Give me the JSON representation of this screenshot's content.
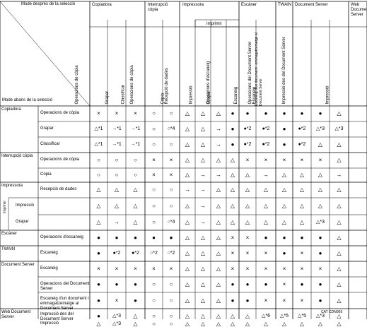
{
  "corner": {
    "top_label": "Mode després de la selecció",
    "bottom_label": "Mode abans de la selecció"
  },
  "groups": [
    {
      "label": "Copiadora"
    },
    {
      "label": "Interrupció còpia"
    },
    {
      "label": "Impressora",
      "sub": "Imprimir"
    },
    {
      "label": "Escàner"
    },
    {
      "label": "TWAIN"
    },
    {
      "label": "Document Server"
    },
    {
      "label": "Web Document Server"
    }
  ],
  "columns": [
    {
      "label": "Operacions de còpia"
    },
    {
      "label": "Grapar"
    },
    {
      "label": "Classificar"
    },
    {
      "label": "Operacions de còpia"
    },
    {
      "label": "Còpia"
    },
    {
      "label": "Recepció de dades"
    },
    {
      "label": "Impressió"
    },
    {
      "label": "Grapar"
    },
    {
      "label": "Operacions d'escaneig"
    },
    {
      "label": "Escaneig"
    },
    {
      "label": "Escaneig"
    },
    {
      "label": "Operacions del Document Server"
    },
    {
      "label": "Escaneig d'un document i emmagatzematge al Document Server"
    },
    {
      "label": "Impressió des del Document Server"
    },
    {
      "label": "Impressió"
    }
  ],
  "row_groups": [
    {
      "label": "Copiadora"
    },
    {
      "label": "Interrupció còpia"
    },
    {
      "label": "Impressora",
      "sub": "Imprimir"
    },
    {
      "label": "Escàner"
    },
    {
      "label": "TWAIN"
    },
    {
      "label": "Document Server"
    },
    {
      "label": "Web Document Server"
    }
  ],
  "rows": [
    {
      "label": "Operacions de còpia",
      "cells": [
        "×",
        "×",
        "×",
        "○",
        "○",
        "△",
        "△",
        "△",
        "●",
        "●",
        "●",
        "●",
        "●",
        "●",
        "△"
      ]
    },
    {
      "label": "Grapar",
      "cells": [
        "△*1",
        "→*1",
        "→*1",
        "○",
        "○*4",
        "△",
        "△",
        "→",
        "●",
        "●*2",
        "●*2",
        "●",
        "●*2",
        "△*3",
        "△*3"
      ]
    },
    {
      "label": "Classificar",
      "cells": [
        "△*1",
        "→*1",
        "→*1",
        "○",
        "○",
        "△",
        "△",
        "→",
        "●",
        "●*2",
        "●*2",
        "●",
        "●*2",
        "△",
        "△"
      ]
    },
    {
      "label": "Operacions de còpia",
      "cells": [
        "○",
        "○",
        "○",
        "×",
        "×",
        "△",
        "△",
        "△",
        "△",
        "×",
        "×",
        "×",
        "×",
        "×",
        "△"
      ]
    },
    {
      "label": "Còpia",
      "cells": [
        "○",
        "○",
        "○",
        "×",
        "×",
        "△",
        "→",
        "→",
        "△",
        "△",
        "→",
        "△",
        "△",
        "△",
        "→"
      ]
    },
    {
      "label": "Recepció de dades",
      "cells": [
        "△",
        "△",
        "△",
        "○",
        "○",
        "→",
        "→",
        "△",
        "△",
        "△",
        "△",
        "△",
        "△",
        "△",
        "△"
      ]
    },
    {
      "label": "Impressió",
      "cells": [
        "△",
        "△",
        "△",
        "○",
        "○",
        "△",
        "→",
        "△",
        "△",
        "△",
        "△",
        "△",
        "△",
        "△",
        "△"
      ]
    },
    {
      "label": "Grapar",
      "cells": [
        "△",
        "→",
        "△",
        "○",
        "○*4",
        "△",
        "→",
        "△",
        "△",
        "△",
        "△",
        "△",
        "△",
        "△*3",
        "△"
      ]
    },
    {
      "label": "Operacions d'escaneig",
      "cells": [
        "●",
        "●",
        "●",
        "●",
        "●",
        "△",
        "△",
        "△",
        "×",
        "×",
        "●",
        "●",
        "●",
        "●",
        "△"
      ]
    },
    {
      "label": "Escaneig",
      "cells": [
        "●",
        "●*2",
        "●*2",
        "○*2",
        "○*2",
        "△",
        "△",
        "△",
        "×",
        "×",
        "×",
        "●",
        "×",
        "●",
        "△"
      ]
    },
    {
      "label": "Escaneig",
      "cells": [
        "×",
        "×",
        "×",
        "×",
        "×",
        "△",
        "△",
        "△",
        "×",
        "×",
        "×",
        "×",
        "×",
        "×",
        "△"
      ]
    },
    {
      "label": "Operacions del Document Server",
      "cells": [
        "●",
        "●",
        "●",
        "○",
        "○",
        "△",
        "△",
        "△",
        "●",
        "●",
        "●",
        "×",
        "●",
        "●",
        "△"
      ]
    },
    {
      "label": "Escaneig d'un document i emmagatzematge al Document Server",
      "cells": [
        "●",
        "×",
        "●",
        "○",
        "○",
        "△",
        "△",
        "△",
        "●",
        "●",
        "×",
        "×",
        "×",
        "●",
        "△"
      ]
    },
    {
      "label": "Impressió des del Document Server",
      "cells": [
        "●",
        "△*3",
        "△",
        "○",
        "○",
        "△",
        "△",
        "△",
        "△",
        "△",
        "△*6",
        "△*5",
        "△*5",
        "△*3",
        "△"
      ]
    },
    {
      "label": "Impressió",
      "cells": [
        "△",
        "△*3",
        "△",
        "○",
        "○",
        "△",
        "△",
        "△",
        "△",
        "△",
        "△",
        "△",
        "△",
        "△",
        "△"
      ]
    }
  ],
  "code": "CAT CDN009"
}
